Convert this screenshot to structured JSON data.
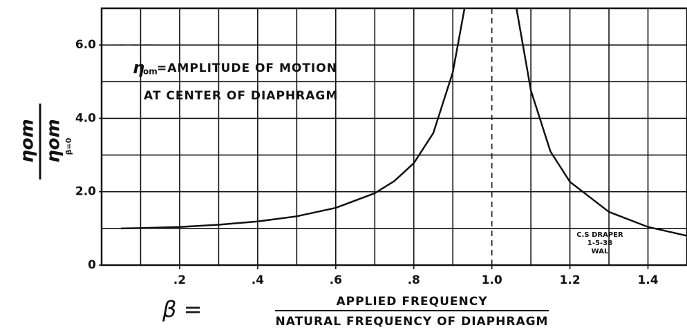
{
  "chart_data": {
    "type": "line",
    "x": [
      0.05,
      0.1,
      0.2,
      0.3,
      0.4,
      0.5,
      0.6,
      0.7,
      0.75,
      0.8,
      0.85,
      0.9,
      0.93,
      1.0,
      1.063,
      1.1,
      1.15,
      1.2,
      1.3,
      1.4,
      1.5
    ],
    "series": [
      {
        "color": "#111",
        "values": [
          1.0,
          1.01,
          1.04,
          1.1,
          1.19,
          1.33,
          1.56,
          1.96,
          2.29,
          2.78,
          3.6,
          5.26,
          7.0,
          null,
          7.0,
          4.76,
          3.1,
          2.27,
          1.45,
          1.04,
          0.8
        ]
      }
    ],
    "xlim": [
      0,
      1.5
    ],
    "ylim": [
      0,
      7
    ],
    "xticks": [
      {
        "value": 0.2,
        "label": ".2"
      },
      {
        "value": 0.4,
        "label": ".4"
      },
      {
        "value": 0.6,
        "label": ".6"
      },
      {
        "value": 0.8,
        "label": ".8"
      },
      {
        "value": 1.0,
        "label": "1.0"
      },
      {
        "value": 1.2,
        "label": "1.2"
      },
      {
        "value": 1.4,
        "label": "1.4"
      }
    ],
    "yticks": [
      0,
      {
        "value": 2,
        "label": "2.0"
      },
      {
        "value": 4,
        "label": "4.0"
      },
      {
        "value": 6,
        "label": "6.0"
      }
    ],
    "x_grid": [
      0.1,
      0.2,
      0.3,
      0.4,
      0.5,
      0.6,
      0.7,
      0.8,
      0.9,
      1.1,
      1.2,
      1.3,
      1.4
    ],
    "y_grid": [
      1,
      2,
      3,
      4,
      5,
      6
    ],
    "dashed_x": 1.0,
    "dashed_y": 6,
    "annotations": {
      "eta": "η",
      "om": "om",
      "line1": "=AMPLITUDE  OF  MOTION",
      "line2": "AT  CENTER  OF  DIAPHRAGM",
      "draper": "C.S DRAPER",
      "date": "1-5-38",
      "initials": "WAL"
    },
    "ylabel": {
      "num": "ηom",
      "den": "ηom",
      "sub": "β=0"
    },
    "xlabel": {
      "symbol": "β =",
      "num": "APPLIED  FREQUENCY",
      "den": "NATURAL  FREQUENCY  OF  DIAPHRAGM"
    }
  }
}
